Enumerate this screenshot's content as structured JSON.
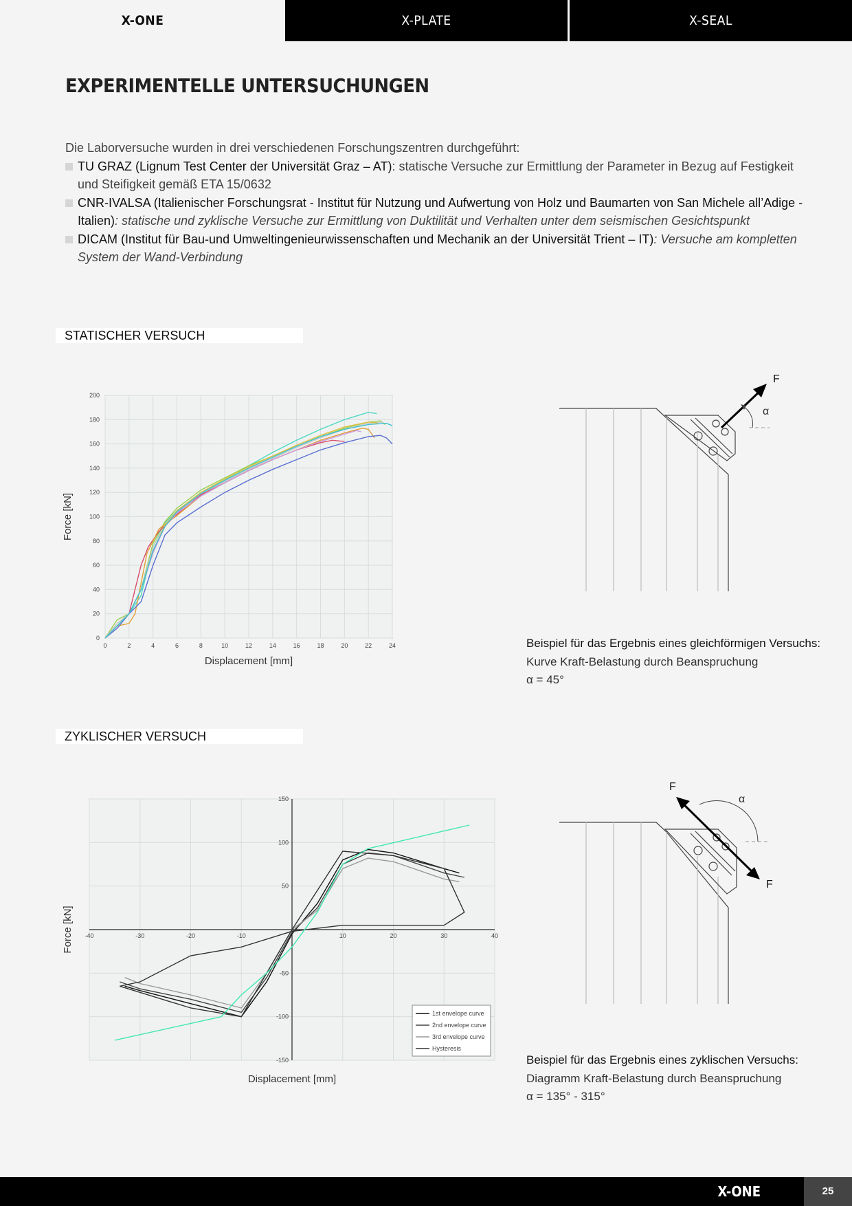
{
  "tabs": [
    "X-ONE",
    "X-PLATE",
    "X-SEAL"
  ],
  "title": "EXPERIMENTELLE UNTERSUCHUNGEN",
  "intro": {
    "lead": "Die Laborversuche wurden in drei verschiedenen Forschungszentren durchgeführt:",
    "items": [
      {
        "name": "TU GRAZ (Lignum Test Center der Universität Graz – AT)",
        "desc": ": statische Versuche zur Ermittlung der Parameter in Bezug auf Festigkeit und Steifigkeit gemäß ETA 15/0632"
      },
      {
        "name": "CNR-IVALSA (Italienischer Forschungsrat - Institut für Nutzung und Aufwertung von Holz und Baumarten von San Michele all’Adige - Italien)",
        "desc": ": statische und zyklische Versuche zur Ermittlung von Duktilität und Verhalten unter dem seismischen Gesichtspunkt"
      },
      {
        "name": "DICAM (Institut für Bau-und Umweltingenieurwissenschaften und Mechanik an der Universität Trient – IT)",
        "desc": ": Versuche am kompletten System der Wand-Verbindung"
      }
    ]
  },
  "static_section": {
    "heading": "STATISCHER VERSUCH",
    "caption_bold": "Beispiel für das Ergebnis eines gleichförmigen Versuchs:",
    "caption_text": " Kurve Kraft-Belastung durch Beanspruchung",
    "caption_angle": "α = 45°",
    "diagram": {
      "force_label": "F",
      "angle_label": "α"
    }
  },
  "cyclic_section": {
    "heading": "ZYKLISCHER VERSUCH",
    "caption_bold": "Beispiel für das Ergebnis eines zyklischen Versuchs:",
    "caption_text": "Diagramm Kraft-Belastung durch Beanspruchung",
    "caption_angle": "α = 135° - 315°",
    "diagram": {
      "force_label_1": "F",
      "force_label_2": "F",
      "angle_label": "α"
    }
  },
  "chart_data": [
    {
      "type": "line",
      "xlabel": "Displacement [mm]",
      "ylabel": "Force [kN]",
      "xlim": [
        0,
        24
      ],
      "ylim": [
        0,
        200
      ],
      "xticks": [
        0,
        2,
        4,
        6,
        8,
        10,
        12,
        14,
        16,
        18,
        20,
        22,
        24
      ],
      "yticks": [
        0,
        20,
        40,
        60,
        80,
        100,
        120,
        140,
        160,
        180,
        200
      ],
      "grid": true,
      "series": [
        {
          "color": "#4dd9c0",
          "x": [
            0,
            1,
            2,
            3,
            4,
            5,
            6,
            8,
            10,
            12,
            14,
            16,
            18,
            20,
            22,
            22.7
          ],
          "y": [
            0,
            10,
            20,
            35,
            75,
            95,
            105,
            120,
            130,
            142,
            153,
            163,
            172,
            180,
            186,
            185
          ]
        },
        {
          "color": "#9bcf4d",
          "x": [
            0,
            1,
            2,
            3,
            4,
            5,
            6,
            8,
            10,
            12,
            14,
            16,
            18,
            20,
            22,
            23,
            23.4
          ],
          "y": [
            0,
            15,
            20,
            40,
            78,
            96,
            107,
            122,
            132,
            142,
            150,
            158,
            166,
            173,
            178,
            179,
            176
          ]
        },
        {
          "color": "#c9c9c9",
          "x": [
            0,
            1,
            2,
            3,
            4,
            5,
            6,
            8,
            10,
            12,
            14,
            16,
            18,
            20,
            22,
            23.2
          ],
          "y": [
            0,
            12,
            20,
            40,
            75,
            94,
            104,
            118,
            129,
            139,
            148,
            157,
            165,
            172,
            177,
            178
          ]
        },
        {
          "color": "#d84d6a",
          "x": [
            0,
            1,
            2,
            3,
            3.6,
            4.5,
            6,
            8,
            10,
            12,
            14,
            16,
            18,
            19,
            20
          ],
          "y": [
            0,
            10,
            20,
            60,
            75,
            88,
            102,
            118,
            128,
            138,
            147,
            155,
            161,
            163,
            162
          ]
        },
        {
          "color": "#e0a03a",
          "x": [
            0,
            1,
            2,
            2.5,
            3.5,
            4.5,
            6,
            8,
            10,
            12,
            14,
            16,
            18,
            20,
            21.5,
            22,
            22.5
          ],
          "y": [
            0,
            10,
            12,
            20,
            70,
            90,
            101,
            117,
            128,
            138,
            147,
            155,
            163,
            169,
            173,
            172,
            165
          ]
        },
        {
          "color": "#c99be0",
          "x": [
            0,
            1,
            2,
            3,
            4,
            5,
            6,
            8,
            10,
            12,
            14,
            16,
            18,
            20,
            21,
            21.4
          ],
          "y": [
            0,
            10,
            20,
            40,
            70,
            92,
            103,
            117,
            128,
            138,
            147,
            155,
            162,
            168,
            171,
            170
          ]
        },
        {
          "color": "#5a6fd0",
          "x": [
            0,
            1,
            2,
            3,
            4,
            5,
            6,
            8,
            10,
            12,
            14,
            16,
            18,
            20,
            22,
            23,
            23.5,
            24
          ],
          "y": [
            0,
            8,
            20,
            30,
            60,
            85,
            95,
            108,
            120,
            130,
            139,
            147,
            155,
            161,
            166,
            167,
            165,
            160
          ]
        },
        {
          "color": "#e0c040",
          "x": [
            0,
            1,
            2,
            3,
            4,
            5,
            6,
            8,
            10,
            12,
            14,
            16,
            18,
            20,
            22,
            22.8
          ],
          "y": [
            0,
            10,
            20,
            40,
            72,
            93,
            105,
            120,
            131,
            141,
            150,
            159,
            167,
            174,
            178,
            177
          ]
        },
        {
          "color": "#3ec0d8",
          "x": [
            0,
            1,
            2,
            3,
            4,
            5,
            6,
            8,
            10,
            12,
            14,
            16,
            18,
            20,
            22,
            23.5,
            24
          ],
          "y": [
            0,
            10,
            20,
            40,
            72,
            92,
            104,
            119,
            130,
            140,
            149,
            158,
            166,
            172,
            176,
            177,
            175
          ]
        }
      ]
    },
    {
      "type": "line",
      "xlabel": "Displacement [mm]",
      "ylabel": "Force [kN]",
      "xlim": [
        -40,
        40
      ],
      "ylim": [
        -150,
        150
      ],
      "xticks": [
        -40,
        -30,
        -20,
        -10,
        10,
        20,
        30,
        40
      ],
      "yticks": [
        -150,
        -100,
        -50,
        50,
        100,
        150
      ],
      "grid": true,
      "legend": "bottom-right",
      "series": [
        {
          "name": "1st envelope curve",
          "color": "#111",
          "x": [
            -33,
            -30,
            -20,
            -10,
            -5,
            0,
            5,
            10,
            15,
            20,
            30,
            33
          ],
          "y": [
            -65,
            -70,
            -85,
            -100,
            -60,
            -5,
            30,
            80,
            92,
            88,
            70,
            65
          ]
        },
        {
          "name": "2nd envelope curve",
          "color": "#444",
          "x": [
            -34,
            -30,
            -20,
            -10,
            -5,
            0,
            5,
            10,
            15,
            20,
            30,
            34
          ],
          "y": [
            -60,
            -68,
            -80,
            -95,
            -55,
            -3,
            25,
            75,
            88,
            85,
            65,
            60
          ]
        },
        {
          "name": "3rd envelope curve",
          "color": "#999",
          "x": [
            -33,
            -30,
            -20,
            -10,
            -5,
            0,
            5,
            10,
            15,
            20,
            30,
            33
          ],
          "y": [
            -55,
            -62,
            -75,
            -90,
            -50,
            0,
            22,
            70,
            82,
            78,
            58,
            55
          ]
        },
        {
          "name": "Hysteresis",
          "color": "#333",
          "x": [
            -34,
            -20,
            -10,
            0,
            10,
            20,
            30,
            34,
            30,
            20,
            10,
            0,
            -10,
            -20,
            -30,
            -34
          ],
          "y": [
            -65,
            -90,
            -100,
            0,
            90,
            85,
            70,
            20,
            5,
            5,
            5,
            -2,
            -20,
            -30,
            -60,
            -65
          ]
        },
        {
          "name": "",
          "color": "#40e8b0",
          "x": [
            -35,
            -14,
            -10,
            -5,
            0,
            5,
            10,
            15,
            35
          ],
          "y": [
            -127,
            -100,
            -75,
            -50,
            -20,
            20,
            75,
            93,
            120
          ]
        }
      ]
    }
  ]
}
